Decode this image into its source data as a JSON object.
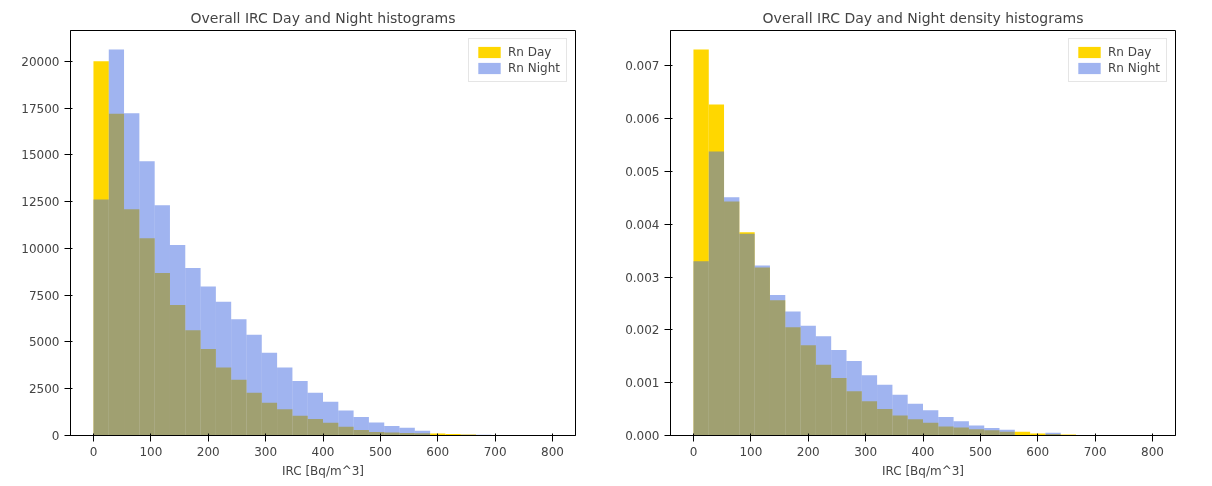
{
  "chart_data": [
    {
      "type": "histogram",
      "title": "Overall IRC Day and Night histograms",
      "xlabel": "IRC [Bq/m^3]",
      "bins": [
        0,
        26.7,
        53.3,
        80,
        106.7,
        133.3,
        160,
        186.7,
        213.3,
        240,
        266.7,
        293.3,
        320,
        346.7,
        373.3,
        400,
        426.7,
        453.3,
        480,
        506.7,
        533.3,
        560,
        586.7,
        613.3,
        640,
        666.7,
        693.3,
        720,
        746.7,
        773.3,
        800
      ],
      "series": [
        {
          "name": "Rn Day",
          "color": "#ffd700",
          "values": [
            20000,
            17200,
            12090,
            10550,
            8690,
            6970,
            5630,
            4630,
            3640,
            2980,
            2280,
            1750,
            1400,
            1050,
            880,
            680,
            470,
            290,
            190,
            160,
            140,
            120,
            110,
            80,
            60,
            30,
            20,
            10,
            0,
            0
          ]
        },
        {
          "name": "Rn Night",
          "color": "#4169e1",
          "values": [
            12620,
            20640,
            17230,
            14660,
            12310,
            10190,
            8960,
            7960,
            7150,
            6210,
            5390,
            4420,
            3640,
            2920,
            2280,
            1810,
            1340,
            990,
            700,
            510,
            410,
            250,
            null,
            null,
            40,
            40,
            30,
            0,
            30,
            0
          ]
        }
      ],
      "xlim": [
        -40,
        840
      ],
      "xticks": [
        0,
        100,
        200,
        300,
        400,
        500,
        600,
        700,
        800
      ],
      "ylim": [
        0,
        21650
      ],
      "yticks": [
        0,
        2500,
        5000,
        7500,
        10000,
        12500,
        15000,
        17500,
        20000
      ],
      "grid": false,
      "legend": "top right"
    },
    {
      "type": "histogram",
      "title": "Overall IRC Day and Night density histograms",
      "xlabel": "IRC [Bq/m^3]",
      "bins": [
        0,
        26.7,
        53.3,
        80,
        106.7,
        133.3,
        160,
        186.7,
        213.3,
        240,
        266.7,
        293.3,
        320,
        346.7,
        373.3,
        400,
        426.7,
        453.3,
        480,
        506.7,
        533.3,
        560,
        586.7,
        613.3,
        640,
        666.7,
        693.3,
        720,
        746.7,
        773.3,
        800
      ],
      "series": [
        {
          "name": "Rn Day",
          "color": "#ffd700",
          "values": [
            0.00731,
            0.00627,
            0.00443,
            0.00385,
            0.00318,
            0.00256,
            0.00205,
            0.00171,
            0.00134,
            0.00109,
            0.00084,
            0.00065,
            0.0005,
            0.00038,
            0.00031,
            0.00024,
            0.00017,
            0.00015,
            0.00012,
            0.0001,
            7e-05,
            7e-05,
            4e-05,
            3e-05,
            2e-05,
            1e-05,
            0,
            0,
            0,
            0
          ]
        },
        {
          "name": "Rn Night",
          "color": "#4169e1",
          "values": [
            0.0033,
            0.00538,
            0.00451,
            0.00382,
            0.00322,
            0.00266,
            0.00235,
            0.00208,
            0.00188,
            0.00162,
            0.00141,
            0.00114,
            0.00096,
            0.00077,
            0.0006,
            0.00048,
            0.00035,
            0.00027,
            0.00019,
            0.00014,
            0.00011,
            null,
            null,
            5e-05,
            null,
            null,
            0,
            0,
            0,
            0
          ]
        }
      ],
      "xlim": [
        -40,
        840
      ],
      "xticks": [
        0,
        100,
        200,
        300,
        400,
        500,
        600,
        700,
        800
      ],
      "ylim": [
        0,
        0.00767
      ],
      "yticks": [
        {
          "value": 0,
          "label": "0.000"
        },
        {
          "value": 0.001,
          "label": "0.001"
        },
        {
          "value": 0.002,
          "label": "0.002"
        },
        {
          "value": 0.003,
          "label": "0.003"
        },
        {
          "value": 0.004,
          "label": "0.004"
        },
        {
          "value": 0.005,
          "label": "0.005"
        },
        {
          "value": 0.006,
          "label": "0.006"
        },
        {
          "value": 0.007,
          "label": "0.007"
        }
      ],
      "grid": false,
      "legend": "top right"
    }
  ]
}
